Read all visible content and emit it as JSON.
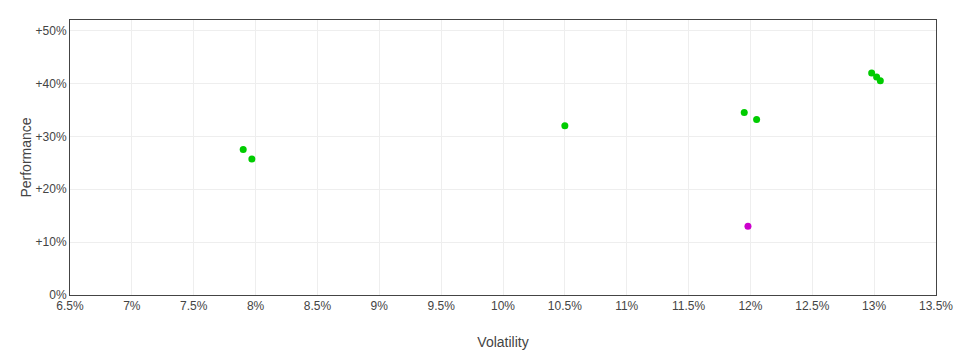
{
  "chart_data": {
    "type": "scatter",
    "xlabel": "Volatility",
    "ylabel": "Performance",
    "series": [
      {
        "color": "#00cc00",
        "x": [
          0.079,
          0.0797,
          0.105,
          0.1195,
          0.1205,
          0.1298,
          0.1302,
          0.1305
        ],
        "values": [
          0.275,
          0.257,
          0.32,
          0.345,
          0.332,
          0.42,
          0.412,
          0.405
        ]
      },
      {
        "color": "#cc00cc",
        "x": [
          0.1198
        ],
        "values": [
          0.13
        ]
      }
    ],
    "xlim": [
      0.065,
      0.135
    ],
    "ylim": [
      0.0,
      0.52
    ],
    "xticks": [
      {
        "value": 0.065,
        "label": "6.5%"
      },
      {
        "value": 0.07,
        "label": "7%"
      },
      {
        "value": 0.075,
        "label": "7.5%"
      },
      {
        "value": 0.08,
        "label": "8%"
      },
      {
        "value": 0.085,
        "label": "8.5%"
      },
      {
        "value": 0.09,
        "label": "9%"
      },
      {
        "value": 0.095,
        "label": "9.5%"
      },
      {
        "value": 0.1,
        "label": "10%"
      },
      {
        "value": 0.105,
        "label": "10.5%"
      },
      {
        "value": 0.11,
        "label": "11%"
      },
      {
        "value": 0.115,
        "label": "11.5%"
      },
      {
        "value": 0.12,
        "label": "12%"
      },
      {
        "value": 0.125,
        "label": "12.5%"
      },
      {
        "value": 0.13,
        "label": "13%"
      },
      {
        "value": 0.135,
        "label": "13.5%"
      }
    ],
    "yticks": [
      {
        "value": 0.0,
        "label": "0%"
      },
      {
        "value": 0.1,
        "label": "+10%"
      },
      {
        "value": 0.2,
        "label": "+20%"
      },
      {
        "value": 0.3,
        "label": "+30%"
      },
      {
        "value": 0.4,
        "label": "+40%"
      },
      {
        "value": 0.5,
        "label": "+50%"
      }
    ],
    "grid": true
  }
}
